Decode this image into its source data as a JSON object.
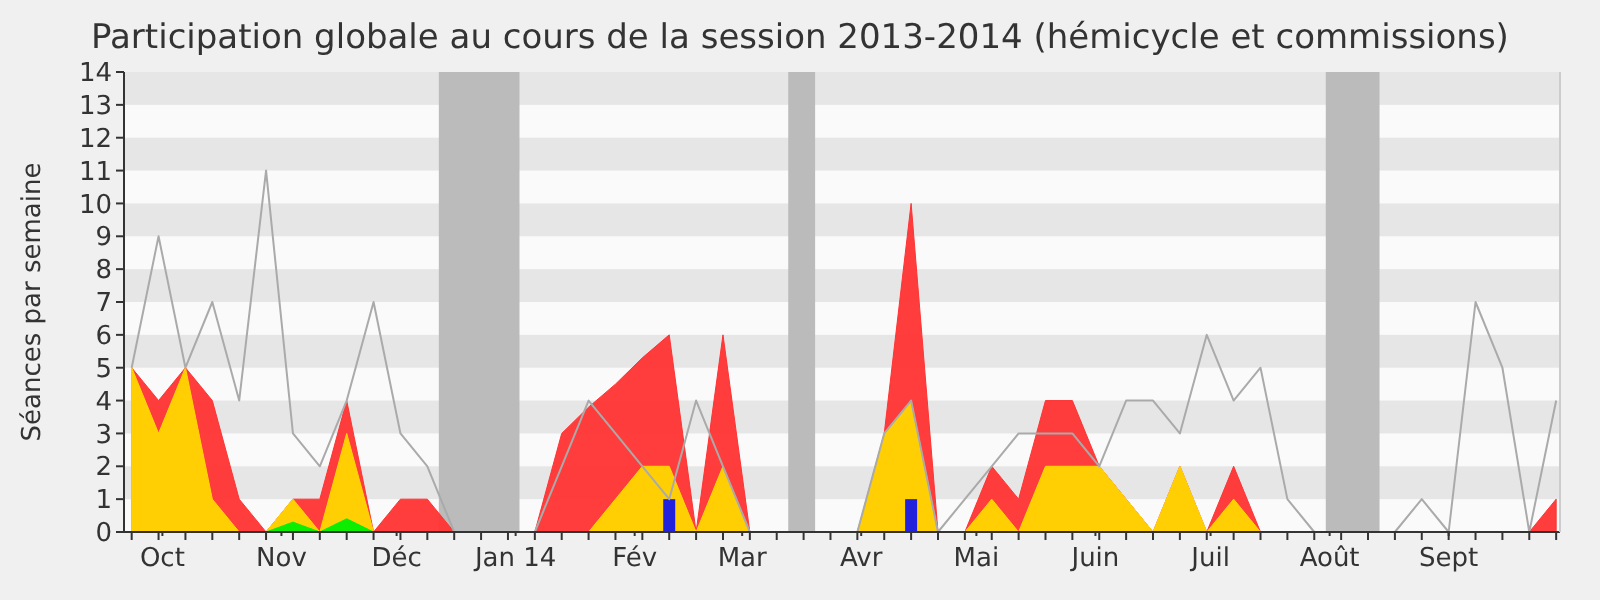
{
  "chart_data": {
    "type": "area",
    "title": "Participation globale au cours de la session 2013-2014 (hémicycle et commissions)",
    "ylabel": "Séances par semaine",
    "x": [
      "2013-09-23",
      "2013-09-30",
      "2013-10-07",
      "2013-10-14",
      "2013-10-21",
      "2013-10-28",
      "2013-11-04",
      "2013-11-11",
      "2013-11-18",
      "2013-11-25",
      "2013-12-02",
      "2013-12-09",
      "2013-12-16",
      "2013-12-23",
      "2013-12-30",
      "2014-01-06",
      "2014-01-13",
      "2014-01-20",
      "2014-01-27",
      "2014-02-03",
      "2014-02-10",
      "2014-02-17",
      "2014-02-24",
      "2014-03-03",
      "2014-03-10",
      "2014-03-17",
      "2014-03-24",
      "2014-03-31",
      "2014-04-07",
      "2014-04-14",
      "2014-04-21",
      "2014-04-28",
      "2014-05-05",
      "2014-05-12",
      "2014-05-19",
      "2014-05-26",
      "2014-06-02",
      "2014-06-09",
      "2014-06-16",
      "2014-06-23",
      "2014-06-30",
      "2014-07-07",
      "2014-07-14",
      "2014-07-21",
      "2014-07-28",
      "2014-08-04",
      "2014-08-11",
      "2014-08-18",
      "2014-08-25",
      "2014-09-01",
      "2014-09-08",
      "2014-09-15",
      "2014-09-22",
      "2014-09-29"
    ],
    "xlim": [
      "2013-09-21",
      "2014-09-30"
    ],
    "xticks": [
      {
        "value": "2013-10-01",
        "label": "Oct"
      },
      {
        "value": "2013-11-01",
        "label": "Nov"
      },
      {
        "value": "2013-12-01",
        "label": "Déc"
      },
      {
        "value": "2014-01-01",
        "label": "Jan 14"
      },
      {
        "value": "2014-02-01",
        "label": "Fév"
      },
      {
        "value": "2014-03-01",
        "label": "Mar"
      },
      {
        "value": "2014-04-01",
        "label": "Avr"
      },
      {
        "value": "2014-05-01",
        "label": "Mai"
      },
      {
        "value": "2014-06-01",
        "label": "Juin"
      },
      {
        "value": "2014-07-01",
        "label": "Juil"
      },
      {
        "value": "2014-08-01",
        "label": "Août"
      },
      {
        "value": "2014-09-01",
        "label": "Sept"
      }
    ],
    "ylim": [
      0,
      14
    ],
    "yticks": [
      0,
      1,
      2,
      3,
      4,
      5,
      6,
      7,
      8,
      9,
      10,
      11,
      12,
      13,
      14
    ],
    "bands": [
      {
        "axis": "y",
        "from": 1,
        "to": 2,
        "color": "#e6e6e6"
      },
      {
        "axis": "y",
        "from": 3,
        "to": 4,
        "color": "#e6e6e6"
      },
      {
        "axis": "y",
        "from": 5,
        "to": 6,
        "color": "#e6e6e6"
      },
      {
        "axis": "y",
        "from": 7,
        "to": 8,
        "color": "#e6e6e6"
      },
      {
        "axis": "y",
        "from": 9,
        "to": 10,
        "color": "#e6e6e6"
      },
      {
        "axis": "y",
        "from": 11,
        "to": 12,
        "color": "#e6e6e6"
      },
      {
        "axis": "y",
        "from": 13,
        "to": 14,
        "color": "#e6e6e6"
      },
      {
        "axis": "x",
        "from": "2013-12-12",
        "to": "2014-01-02",
        "color": "#bbbbbb"
      },
      {
        "axis": "x",
        "from": "2014-03-13",
        "to": "2014-03-20",
        "color": "#bbbbbb"
      },
      {
        "axis": "x",
        "from": "2014-07-31",
        "to": "2014-08-14",
        "color": "#bbbbbb"
      }
    ],
    "series": [
      {
        "type": "line",
        "color": "#aaaaaa",
        "values": [
          5,
          9,
          5,
          7,
          4,
          11,
          3,
          2,
          4,
          7,
          3,
          2,
          0,
          0,
          0,
          0,
          2,
          4,
          3,
          2,
          1,
          4,
          2,
          0,
          0,
          0,
          0,
          0,
          3,
          4,
          0,
          1,
          2,
          3,
          3,
          3,
          2,
          4,
          4,
          3,
          6,
          4,
          5,
          1,
          0,
          0,
          0,
          0,
          1,
          0,
          7,
          5,
          0,
          4
        ]
      },
      {
        "color": "#ff3333",
        "values": [
          5,
          4,
          5,
          4,
          1,
          0,
          1,
          1,
          4,
          0,
          1,
          1,
          0,
          0,
          0,
          0,
          3,
          3.8,
          4.5,
          5.3,
          6,
          0,
          6,
          0,
          0,
          0,
          0,
          0,
          3,
          10,
          0,
          0,
          2,
          1,
          4,
          4,
          2,
          1,
          0,
          2,
          0,
          2,
          0,
          0,
          0,
          0,
          0,
          0,
          0,
          0,
          0,
          0,
          0,
          1
        ]
      },
      {
        "color": "#ffd700",
        "values": [
          5,
          3,
          5,
          1,
          0,
          0,
          1,
          0,
          3,
          0,
          0,
          0,
          0,
          0,
          0,
          0,
          0,
          0,
          1,
          2,
          2,
          0,
          2,
          0,
          0,
          0,
          0,
          0,
          3,
          4,
          0,
          0,
          1,
          0,
          2,
          2,
          2,
          1,
          0,
          2,
          0,
          1,
          0,
          0,
          0,
          0,
          0,
          0,
          0,
          0,
          0,
          0,
          0,
          0
        ]
      },
      {
        "color": "#00ee00",
        "values": [
          0,
          0,
          0,
          0,
          0,
          0,
          0.3,
          0,
          0.4,
          0,
          0,
          0,
          0,
          0,
          0,
          0,
          0,
          0,
          0,
          0,
          0,
          0,
          0,
          0,
          0,
          0,
          0,
          0,
          0,
          0,
          0,
          0,
          0,
          0,
          0,
          0,
          0,
          0,
          0,
          0,
          0,
          0,
          0,
          0,
          0,
          0,
          0,
          0,
          0,
          0,
          0,
          0,
          0,
          0
        ]
      },
      {
        "type": "bar",
        "color": "#2222dd",
        "values": [
          null,
          null,
          null,
          null,
          null,
          null,
          null,
          null,
          null,
          null,
          null,
          null,
          null,
          null,
          null,
          null,
          null,
          null,
          null,
          null,
          1,
          null,
          null,
          null,
          null,
          null,
          null,
          null,
          null,
          1,
          null,
          null,
          null,
          null,
          null,
          null,
          null,
          null,
          null,
          null,
          null,
          null,
          null,
          null,
          null,
          null,
          null,
          null,
          null,
          null,
          null,
          null,
          null,
          null
        ]
      }
    ]
  }
}
